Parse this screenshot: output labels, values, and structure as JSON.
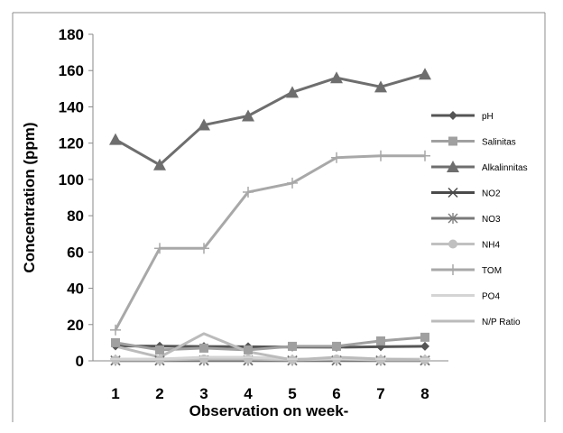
{
  "chart_data": {
    "type": "line",
    "title": "",
    "xlabel": "Observation on week-",
    "ylabel": "Concentration (ppm)",
    "categories": [
      "1",
      "2",
      "3",
      "4",
      "5",
      "6",
      "7",
      "8"
    ],
    "ylim": [
      0,
      180
    ],
    "yticks": [
      "0",
      "20",
      "40",
      "60",
      "80",
      "100",
      "120",
      "140",
      "160",
      "180"
    ],
    "grid": false,
    "legend_position": "right",
    "series": [
      {
        "name": "pH",
        "values": [
          8.2,
          8.1,
          7.9,
          7.8,
          7.6,
          7.5,
          7.8,
          8.0
        ],
        "color": "#555555",
        "marker": "diamond"
      },
      {
        "name": "Salinitas",
        "values": [
          10,
          6,
          7,
          6,
          8,
          8,
          11,
          13
        ],
        "color": "#a0a0a0",
        "marker": "square"
      },
      {
        "name": "Alkalinnitas",
        "values": [
          122,
          108,
          130,
          135,
          148,
          156,
          151,
          158
        ],
        "color": "#6e6e6e",
        "marker": "triangle"
      },
      {
        "name": "NO2",
        "values": [
          0.1,
          0.1,
          0.1,
          0.1,
          0.1,
          0.1,
          0.1,
          0.1
        ],
        "color": "#4a4a4a",
        "marker": "x"
      },
      {
        "name": "NO3",
        "values": [
          0.3,
          0.3,
          0.3,
          0.3,
          0.3,
          0.3,
          0.3,
          0.3
        ],
        "color": "#7a7a7a",
        "marker": "star"
      },
      {
        "name": "NH4",
        "values": [
          0.5,
          0.5,
          1.0,
          1.0,
          0.5,
          1.0,
          0.5,
          0.5
        ],
        "color": "#c0c0c0",
        "marker": "circle"
      },
      {
        "name": "TOM",
        "values": [
          17,
          62,
          62,
          93,
          98,
          112,
          113,
          113
        ],
        "color": "#a8a8a8",
        "marker": "plus"
      },
      {
        "name": "PO4",
        "values": [
          1,
          1,
          2,
          2,
          1,
          1,
          1,
          1
        ],
        "color": "#d4d4d4",
        "marker": "dash"
      },
      {
        "name": "N/P Ratio",
        "values": [
          8,
          2,
          15,
          5,
          0.5,
          2,
          1,
          0.5
        ],
        "color": "#bbbbbb",
        "marker": "none"
      }
    ]
  }
}
